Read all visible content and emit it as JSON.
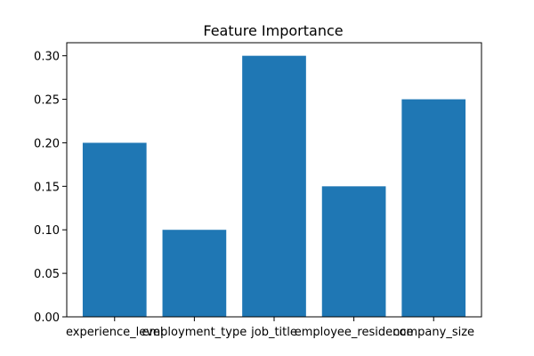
{
  "chart_data": {
    "type": "bar",
    "title": "Feature Importance",
    "xlabel": "",
    "ylabel": "",
    "categories": [
      "experience_level",
      "employment_type",
      "job_title",
      "employee_residence",
      "company_size"
    ],
    "values": [
      0.2,
      0.1,
      0.3,
      0.15,
      0.25
    ],
    "ylim": [
      0,
      0.315
    ],
    "yticks": [
      "0.00",
      "0.05",
      "0.10",
      "0.15",
      "0.20",
      "0.25",
      "0.30"
    ],
    "bar_color": "#1f77b4",
    "grid": false,
    "legend": false
  }
}
